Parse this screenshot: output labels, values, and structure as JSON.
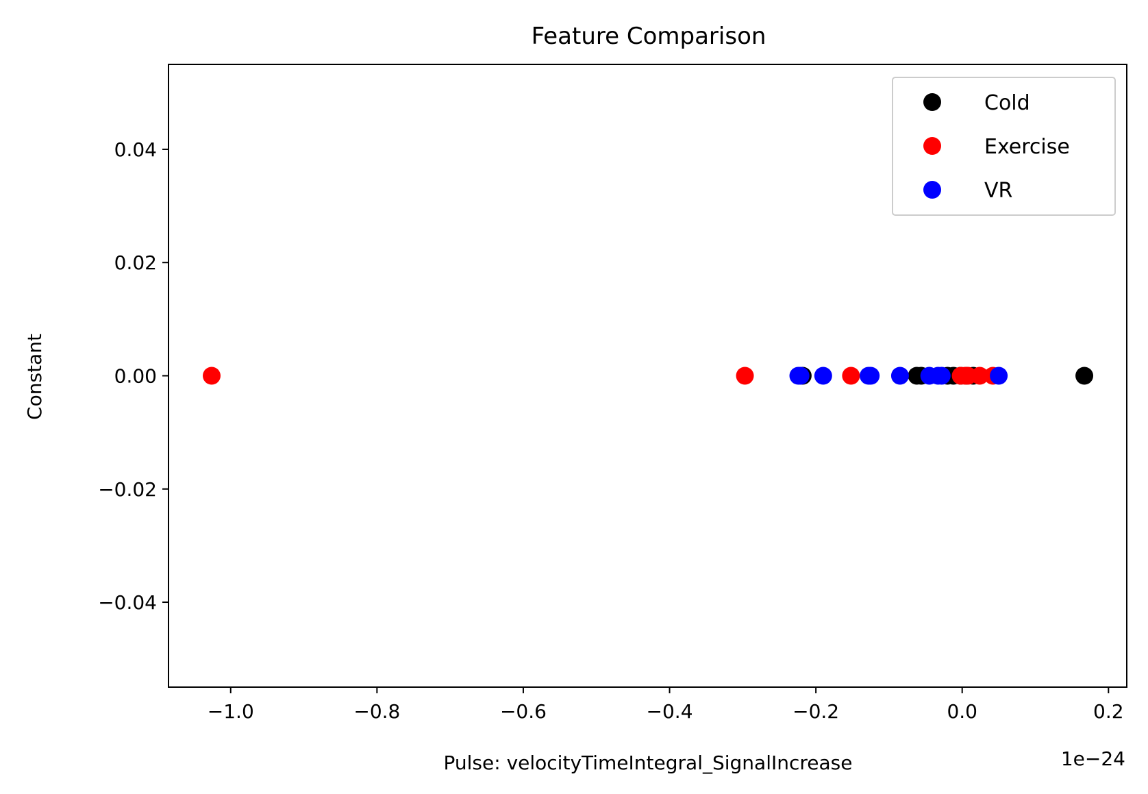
{
  "chart_data": {
    "type": "scatter",
    "title": "Feature Comparison",
    "xlabel": "Pulse: velocityTimeIntegral_SignalIncrease",
    "ylabel": "Constant",
    "x_offset_label": "1e−24",
    "xlim": [
      -1.085,
      0.225
    ],
    "ylim": [
      -0.055,
      0.055
    ],
    "x_ticks": [
      -1.0,
      -0.8,
      -0.6,
      -0.4,
      -0.2,
      0.0,
      0.2
    ],
    "x_tick_labels": [
      "−1.0",
      "−0.8",
      "−0.6",
      "−0.4",
      "−0.2",
      "0.0",
      "0.2"
    ],
    "y_ticks": [
      0.04,
      0.02,
      0.0,
      -0.02,
      -0.04
    ],
    "y_tick_labels": [
      "0.04",
      "0.02",
      "0.00",
      "−0.02",
      "−0.04"
    ],
    "grid": false,
    "legend_position": "top-right",
    "series": [
      {
        "name": "Cold",
        "color": "#000000",
        "x": [
          -0.218,
          -0.062,
          -0.056,
          -0.02,
          -0.012,
          -0.002,
          0.006,
          0.015,
          0.167
        ],
        "y": [
          0,
          0,
          0,
          0,
          0,
          0,
          0,
          0,
          0
        ]
      },
      {
        "name": "Exercise",
        "color": "#ff0000",
        "x": [
          -1.026,
          -0.297,
          -0.152,
          -0.002,
          0.004,
          0.008,
          0.024,
          0.042
        ],
        "y": [
          0,
          0,
          0,
          0,
          0,
          0,
          0,
          0
        ]
      },
      {
        "name": "VR",
        "color": "#0000ff",
        "x": [
          -0.224,
          -0.221,
          -0.19,
          -0.128,
          -0.125,
          -0.085,
          -0.045,
          -0.033,
          -0.028,
          0.05
        ],
        "y": [
          0,
          0,
          0,
          0,
          0,
          0,
          0,
          0,
          0,
          0
        ]
      }
    ]
  }
}
